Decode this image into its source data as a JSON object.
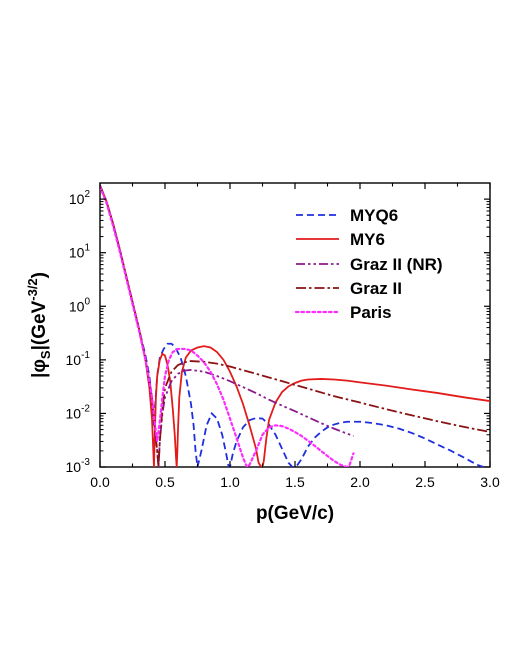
{
  "chart_data": {
    "type": "line",
    "xlabel": "p(GeV/c)",
    "ylabel": {
      "prefix": "|φ",
      "sub": "S",
      "middle": "|(GeV",
      "sup": "-3/2",
      "suffix": ")"
    },
    "xlim": [
      0,
      3
    ],
    "ylim": [
      0.001,
      200
    ],
    "yscale": "log",
    "x_ticks": [
      "0.0",
      "0.5",
      "1.0",
      "1.5",
      "2.0",
      "2.5",
      "3.0"
    ],
    "y_ticks": [
      {
        "base": "10",
        "exp": "-3"
      },
      {
        "base": "10",
        "exp": "-2"
      },
      {
        "base": "10",
        "exp": "-1"
      },
      {
        "base": "10",
        "exp": "0"
      },
      {
        "base": "10",
        "exp": "1"
      },
      {
        "base": "10",
        "exp": "2"
      }
    ],
    "legend_position": "top-right",
    "series": [
      {
        "name": "MYQ6",
        "color": "#1f2fe0",
        "dash": "dash",
        "x": [
          0,
          0.05,
          0.1,
          0.15,
          0.2,
          0.25,
          0.3,
          0.35,
          0.38,
          0.4,
          0.41,
          0.425,
          0.44,
          0.46,
          0.49,
          0.52,
          0.55,
          0.58,
          0.62,
          0.66,
          0.7,
          0.72,
          0.735,
          0.75,
          0.78,
          0.82,
          0.86,
          0.9,
          0.94,
          0.97,
          0.99,
          1.0,
          1.02,
          1.05,
          1.1,
          1.15,
          1.2,
          1.25,
          1.3,
          1.35,
          1.4,
          1.45,
          1.48,
          1.5,
          1.52,
          1.55,
          1.6,
          1.65,
          1.7,
          1.75,
          1.8,
          1.85,
          1.9,
          1.95,
          2.0,
          2.05,
          2.1,
          2.2,
          2.3,
          2.4,
          2.5,
          2.6,
          2.7,
          2.8,
          2.9,
          2.95
        ],
        "y": [
          180,
          90,
          35,
          12,
          3.8,
          1.2,
          0.38,
          0.12,
          0.05,
          0.018,
          0.006,
          0.015,
          0.05,
          0.11,
          0.16,
          0.2,
          0.2,
          0.17,
          0.11,
          0.05,
          0.015,
          0.006,
          0.002,
          0.001,
          0.002,
          0.006,
          0.01,
          0.008,
          0.004,
          0.0018,
          0.001,
          0.001,
          0.0017,
          0.003,
          0.0055,
          0.0075,
          0.0082,
          0.008,
          0.0062,
          0.004,
          0.0022,
          0.0012,
          0.001,
          0.001,
          0.0011,
          0.0014,
          0.0024,
          0.0035,
          0.0045,
          0.0055,
          0.0062,
          0.0067,
          0.007,
          0.007,
          0.007,
          0.0068,
          0.0066,
          0.006,
          0.0052,
          0.0043,
          0.0034,
          0.0026,
          0.002,
          0.0015,
          0.0011,
          0.001
        ]
      },
      {
        "name": "MY6",
        "color": "#e31b1b",
        "dash": "solid",
        "x": [
          0,
          0.05,
          0.1,
          0.15,
          0.2,
          0.25,
          0.3,
          0.35,
          0.38,
          0.4,
          0.41,
          0.415,
          0.42,
          0.43,
          0.44,
          0.46,
          0.48,
          0.5,
          0.52,
          0.54,
          0.56,
          0.575,
          0.585,
          0.59,
          0.595,
          0.6,
          0.61,
          0.63,
          0.66,
          0.7,
          0.75,
          0.8,
          0.85,
          0.9,
          0.95,
          1.0,
          1.05,
          1.1,
          1.15,
          1.2,
          1.22,
          1.24,
          1.25,
          1.26,
          1.28,
          1.3,
          1.35,
          1.4,
          1.45,
          1.5,
          1.55,
          1.6,
          1.7,
          1.8,
          1.9,
          2.0,
          2.2,
          2.4,
          2.6,
          2.8,
          3.0
        ],
        "y": [
          180,
          90,
          35,
          12,
          3.8,
          1.2,
          0.38,
          0.1,
          0.03,
          0.008,
          0.002,
          0.001,
          0.003,
          0.02,
          0.05,
          0.1,
          0.13,
          0.12,
          0.08,
          0.04,
          0.012,
          0.004,
          0.0015,
          0.001,
          0.002,
          0.005,
          0.02,
          0.06,
          0.11,
          0.15,
          0.17,
          0.18,
          0.17,
          0.14,
          0.1,
          0.06,
          0.032,
          0.015,
          0.006,
          0.0022,
          0.0012,
          0.001,
          0.001,
          0.0013,
          0.0035,
          0.0075,
          0.016,
          0.025,
          0.032,
          0.037,
          0.041,
          0.043,
          0.044,
          0.043,
          0.041,
          0.038,
          0.033,
          0.028,
          0.024,
          0.02,
          0.017
        ]
      },
      {
        "name": "Graz II (NR)",
        "color": "#8b1a8b",
        "dash": "dash-dot-dot",
        "x": [
          0,
          0.05,
          0.1,
          0.15,
          0.2,
          0.25,
          0.3,
          0.35,
          0.4,
          0.42,
          0.44,
          0.45,
          0.46,
          0.48,
          0.5,
          0.55,
          0.6,
          0.65,
          0.7,
          0.8,
          0.9,
          1.0,
          1.1,
          1.2,
          1.3,
          1.4,
          1.5,
          1.6,
          1.7,
          1.8,
          1.9,
          1.95
        ],
        "y": [
          180,
          90,
          35,
          12,
          3.8,
          1.2,
          0.38,
          0.1,
          0.02,
          0.006,
          0.002,
          0.001,
          0.003,
          0.01,
          0.02,
          0.04,
          0.055,
          0.063,
          0.065,
          0.06,
          0.05,
          0.04,
          0.031,
          0.024,
          0.018,
          0.014,
          0.011,
          0.0085,
          0.0066,
          0.0052,
          0.0042,
          0.0038
        ]
      },
      {
        "name": "Graz II",
        "color": "#8b1212",
        "dash": "dash-dot",
        "x": [
          0,
          0.05,
          0.1,
          0.15,
          0.2,
          0.25,
          0.3,
          0.35,
          0.4,
          0.42,
          0.44,
          0.45,
          0.46,
          0.48,
          0.5,
          0.55,
          0.6,
          0.65,
          0.7,
          0.8,
          0.9,
          1.0,
          1.2,
          1.4,
          1.6,
          1.8,
          2.0,
          2.2,
          2.4,
          2.6,
          2.8,
          3.0
        ],
        "y": [
          180,
          90,
          35,
          12,
          3.8,
          1.2,
          0.38,
          0.1,
          0.02,
          0.006,
          0.002,
          0.001,
          0.003,
          0.012,
          0.03,
          0.06,
          0.08,
          0.09,
          0.095,
          0.092,
          0.085,
          0.075,
          0.055,
          0.04,
          0.029,
          0.021,
          0.016,
          0.012,
          0.0092,
          0.0071,
          0.0056,
          0.0045
        ]
      },
      {
        "name": "Paris",
        "color": "#ff2bff",
        "dash": "dot",
        "x": [
          0,
          0.05,
          0.1,
          0.15,
          0.2,
          0.25,
          0.3,
          0.35,
          0.38,
          0.4,
          0.42,
          0.44,
          0.46,
          0.48,
          0.5,
          0.53,
          0.56,
          0.6,
          0.65,
          0.7,
          0.75,
          0.8,
          0.85,
          0.9,
          0.95,
          1.0,
          1.05,
          1.1,
          1.13,
          1.15,
          1.2,
          1.25,
          1.3,
          1.35,
          1.4,
          1.45,
          1.5,
          1.55,
          1.6,
          1.65,
          1.7,
          1.75,
          1.8,
          1.85,
          1.9,
          1.92,
          1.95
        ],
        "y": [
          170,
          85,
          32,
          11,
          3.5,
          1.1,
          0.35,
          0.1,
          0.04,
          0.02,
          0.007,
          0.003,
          0.007,
          0.02,
          0.05,
          0.1,
          0.14,
          0.16,
          0.16,
          0.15,
          0.12,
          0.09,
          0.06,
          0.035,
          0.018,
          0.008,
          0.0035,
          0.0015,
          0.001,
          0.0011,
          0.002,
          0.004,
          0.0055,
          0.006,
          0.0058,
          0.0052,
          0.0045,
          0.0038,
          0.0031,
          0.0025,
          0.002,
          0.0016,
          0.0013,
          0.0011,
          0.001,
          0.0011,
          0.0018
        ]
      }
    ]
  }
}
